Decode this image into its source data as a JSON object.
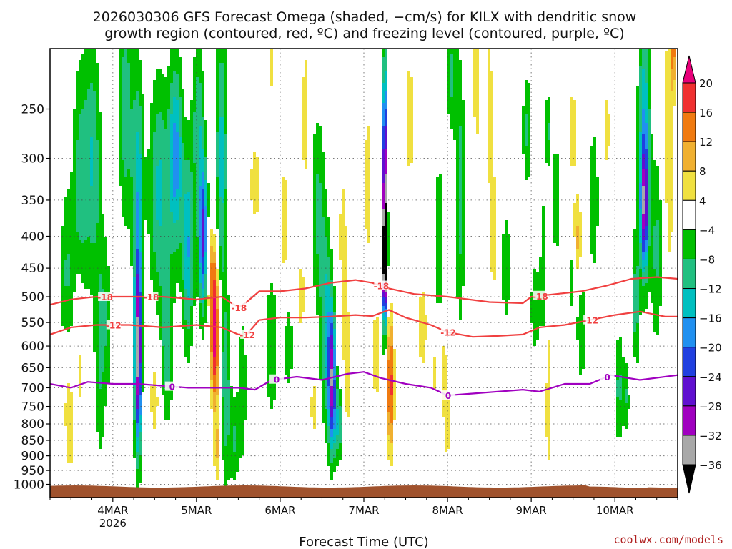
{
  "title_line1": "2026030306 GFS Forecast Omega (shaded, −cm/s) for KILX with dendritic snow",
  "title_line2": "growth region (contoured, red, ºC) and freezing level (contoured, purple, ºC)",
  "credit": "coolwx.com/models",
  "chart_data": {
    "type": "heatmap",
    "xlabel": "Forecast Time (UTC)",
    "ylabel": "",
    "x_range_days": [
      3.25,
      10.75
    ],
    "x_ticks": [
      {
        "day": 4,
        "label": "4MAR",
        "sublabel": "2026"
      },
      {
        "day": 5,
        "label": "5MAR",
        "sublabel": ""
      },
      {
        "day": 6,
        "label": "6MAR",
        "sublabel": ""
      },
      {
        "day": 7,
        "label": "7MAR",
        "sublabel": ""
      },
      {
        "day": 8,
        "label": "8MAR",
        "sublabel": ""
      },
      {
        "day": 9,
        "label": "9MAR",
        "sublabel": ""
      },
      {
        "day": 10,
        "label": "10MAR",
        "sublabel": ""
      }
    ],
    "y_scale": "log-pressure (hPa, inverted)",
    "y_range": [
      1050,
      200
    ],
    "y_ticks": [
      250,
      300,
      350,
      400,
      450,
      500,
      550,
      600,
      650,
      700,
      750,
      800,
      850,
      900,
      950,
      1000
    ],
    "colorbar": {
      "labels": [
        "20",
        "16",
        "12",
        "8",
        "4",
        "−4",
        "−8",
        "−12",
        "−16",
        "−20",
        "−24",
        "−28",
        "−32",
        "−36"
      ],
      "colors": [
        "#e8007a",
        "#f03030",
        "#f07a10",
        "#f0b030",
        "#f0e040",
        "#ffffff",
        "#00c000",
        "#20c080",
        "#00c0c0",
        "#2090f0",
        "#2040e0",
        "#6010d0",
        "#a000c0",
        "#a8a8a8",
        "#000000"
      ]
    },
    "surface_color": "#a0522d",
    "contour_colors": {
      "dgz": "#f04040",
      "freezing": "#a000c0"
    },
    "contours": [
      {
        "label": "-18",
        "color": "#f04040",
        "points": [
          [
            3.25,
            515
          ],
          [
            3.5,
            505
          ],
          [
            3.8,
            500
          ],
          [
            4.2,
            500
          ],
          [
            4.6,
            500
          ],
          [
            5.0,
            505
          ],
          [
            5.3,
            500
          ],
          [
            5.5,
            520
          ],
          [
            5.6,
            510
          ],
          [
            5.75,
            490
          ],
          [
            6.0,
            490
          ],
          [
            6.3,
            485
          ],
          [
            6.6,
            475
          ],
          [
            6.9,
            470
          ],
          [
            7.1,
            475
          ],
          [
            7.3,
            485
          ],
          [
            7.6,
            495
          ],
          [
            8.0,
            500
          ],
          [
            8.5,
            510
          ],
          [
            8.9,
            512
          ],
          [
            9.0,
            500
          ],
          [
            9.3,
            495
          ],
          [
            9.6,
            490
          ],
          [
            9.9,
            480
          ],
          [
            10.2,
            468
          ],
          [
            10.5,
            465
          ],
          [
            10.75,
            468
          ]
        ]
      },
      {
        "label": "-12",
        "color": "#f04040",
        "points": [
          [
            3.25,
            575
          ],
          [
            3.5,
            560
          ],
          [
            3.8,
            555
          ],
          [
            4.2,
            555
          ],
          [
            4.6,
            560
          ],
          [
            5.0,
            555
          ],
          [
            5.3,
            560
          ],
          [
            5.5,
            575
          ],
          [
            5.6,
            575
          ],
          [
            5.75,
            545
          ],
          [
            6.0,
            540
          ],
          [
            6.3,
            540
          ],
          [
            6.6,
            538
          ],
          [
            6.9,
            535
          ],
          [
            7.1,
            537
          ],
          [
            7.3,
            525
          ],
          [
            7.5,
            540
          ],
          [
            7.8,
            555
          ],
          [
            8.0,
            570
          ],
          [
            8.3,
            580
          ],
          [
            8.6,
            578
          ],
          [
            8.9,
            575
          ],
          [
            9.1,
            560
          ],
          [
            9.4,
            555
          ],
          [
            9.7,
            545
          ],
          [
            10.0,
            535
          ],
          [
            10.3,
            528
          ],
          [
            10.6,
            538
          ],
          [
            10.75,
            538
          ]
        ]
      },
      {
        "label": "0",
        "color": "#a000c0",
        "points": [
          [
            3.25,
            690
          ],
          [
            3.5,
            700
          ],
          [
            3.7,
            685
          ],
          [
            4.0,
            690
          ],
          [
            4.3,
            690
          ],
          [
            4.6,
            695
          ],
          [
            4.9,
            700
          ],
          [
            5.2,
            700
          ],
          [
            5.5,
            700
          ],
          [
            5.7,
            705
          ],
          [
            5.9,
            680
          ],
          [
            6.2,
            672
          ],
          [
            6.5,
            680
          ],
          [
            6.8,
            665
          ],
          [
            7.0,
            660
          ],
          [
            7.2,
            675
          ],
          [
            7.5,
            690
          ],
          [
            7.8,
            700
          ],
          [
            8.0,
            720
          ],
          [
            8.3,
            715
          ],
          [
            8.6,
            710
          ],
          [
            8.9,
            705
          ],
          [
            9.1,
            710
          ],
          [
            9.4,
            690
          ],
          [
            9.7,
            690
          ],
          [
            9.95,
            668
          ],
          [
            10.3,
            680
          ],
          [
            10.75,
            668
          ]
        ]
      }
    ],
    "shaded_features": [
      {
        "day": 4.3,
        "p_top": 440,
        "p_bot": 900,
        "value": -32
      },
      {
        "day": 5.2,
        "p_top": 520,
        "p_bot": 700,
        "value": 20
      },
      {
        "day": 7.25,
        "p_top": 240,
        "p_bot": 560,
        "value": -36
      },
      {
        "day": 7.3,
        "p_top": 600,
        "p_bot": 800,
        "value": 16
      },
      {
        "day": 6.6,
        "p_top": 450,
        "p_bot": 950,
        "value": -16
      },
      {
        "day": 10.35,
        "p_top": 210,
        "p_bot": 560,
        "value": -20
      }
    ]
  }
}
